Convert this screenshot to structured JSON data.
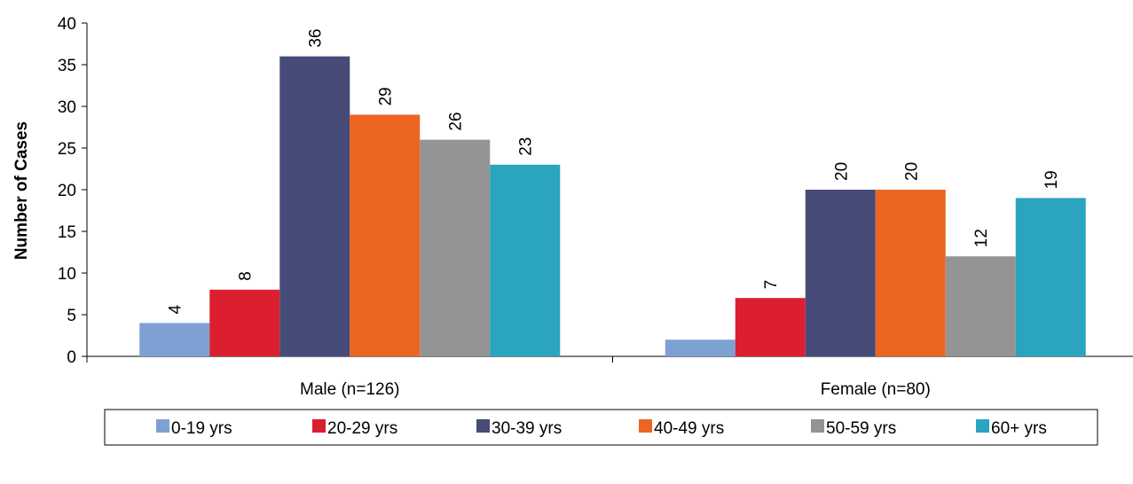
{
  "chart_data": {
    "type": "bar",
    "title": "",
    "xlabel": "",
    "ylabel": "Number of Cases",
    "ylim": [
      0,
      40
    ],
    "yticks": [
      0,
      5,
      10,
      15,
      20,
      25,
      30,
      35,
      40
    ],
    "categories": [
      "Male (n=126)",
      "Female (n=80)"
    ],
    "series": [
      {
        "name": "0-19 yrs",
        "color": "#7EA1D3",
        "values": [
          4,
          2
        ],
        "labels": [
          "4",
          ""
        ]
      },
      {
        "name": "20-29 yrs",
        "color": "#DC1F2E",
        "values": [
          8,
          7
        ],
        "labels": [
          "8",
          "7"
        ]
      },
      {
        "name": "30-39 yrs",
        "color": "#464B78",
        "values": [
          36,
          20
        ],
        "labels": [
          "36",
          "20"
        ]
      },
      {
        "name": "40-49 yrs",
        "color": "#EC6621",
        "values": [
          29,
          20
        ],
        "labels": [
          "29",
          "20"
        ]
      },
      {
        "name": "50-59 yrs",
        "color": "#949494",
        "values": [
          26,
          12
        ],
        "labels": [
          "26",
          "12"
        ]
      },
      {
        "name": "60+ yrs",
        "color": "#2BA4BF",
        "values": [
          23,
          19
        ],
        "labels": [
          "23",
          "19"
        ]
      }
    ],
    "grid": false,
    "legend": "bottom"
  }
}
